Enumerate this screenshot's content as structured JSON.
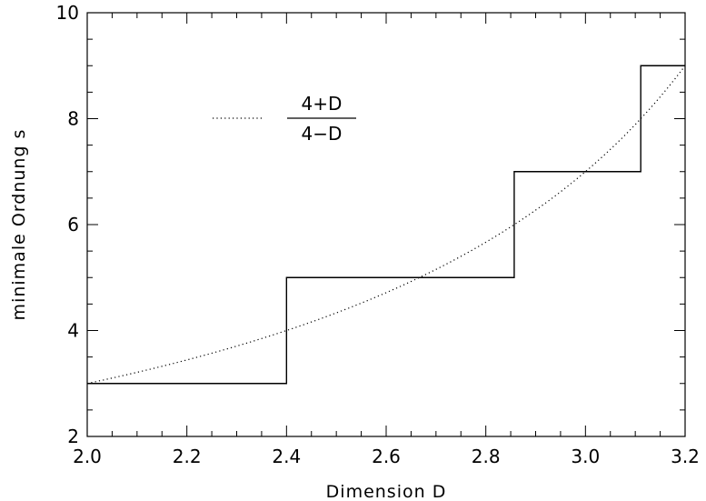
{
  "chart_data": {
    "type": "line",
    "xlabel": "Dimension D",
    "ylabel": "minimale Ordnung s",
    "xlim": [
      2.0,
      3.2
    ],
    "ylim": [
      2,
      10
    ],
    "x_ticks": [
      "2.0",
      "2.2",
      "2.4",
      "2.6",
      "2.8",
      "3.0",
      "3.2"
    ],
    "y_ticks": [
      "2",
      "4",
      "6",
      "8",
      "10"
    ],
    "grid": false,
    "legend_position": "top-left",
    "series": [
      {
        "style": "solid-step",
        "x": [
          2.0,
          2.4,
          2.4,
          2.857,
          2.857,
          3.111,
          3.111,
          3.2
        ],
        "y": [
          3,
          3,
          5,
          5,
          7,
          7,
          9,
          9
        ]
      },
      {
        "name": "(4+D)/(4−D)",
        "style": "dotted",
        "x": [
          2.0,
          2.2,
          2.4,
          2.6,
          2.8,
          3.0,
          3.2
        ],
        "y": [
          3.0,
          3.44,
          4.0,
          4.71,
          5.67,
          7.0,
          9.0
        ]
      }
    ],
    "legend": {
      "numerator": "4+D",
      "denominator": "4−D"
    }
  }
}
